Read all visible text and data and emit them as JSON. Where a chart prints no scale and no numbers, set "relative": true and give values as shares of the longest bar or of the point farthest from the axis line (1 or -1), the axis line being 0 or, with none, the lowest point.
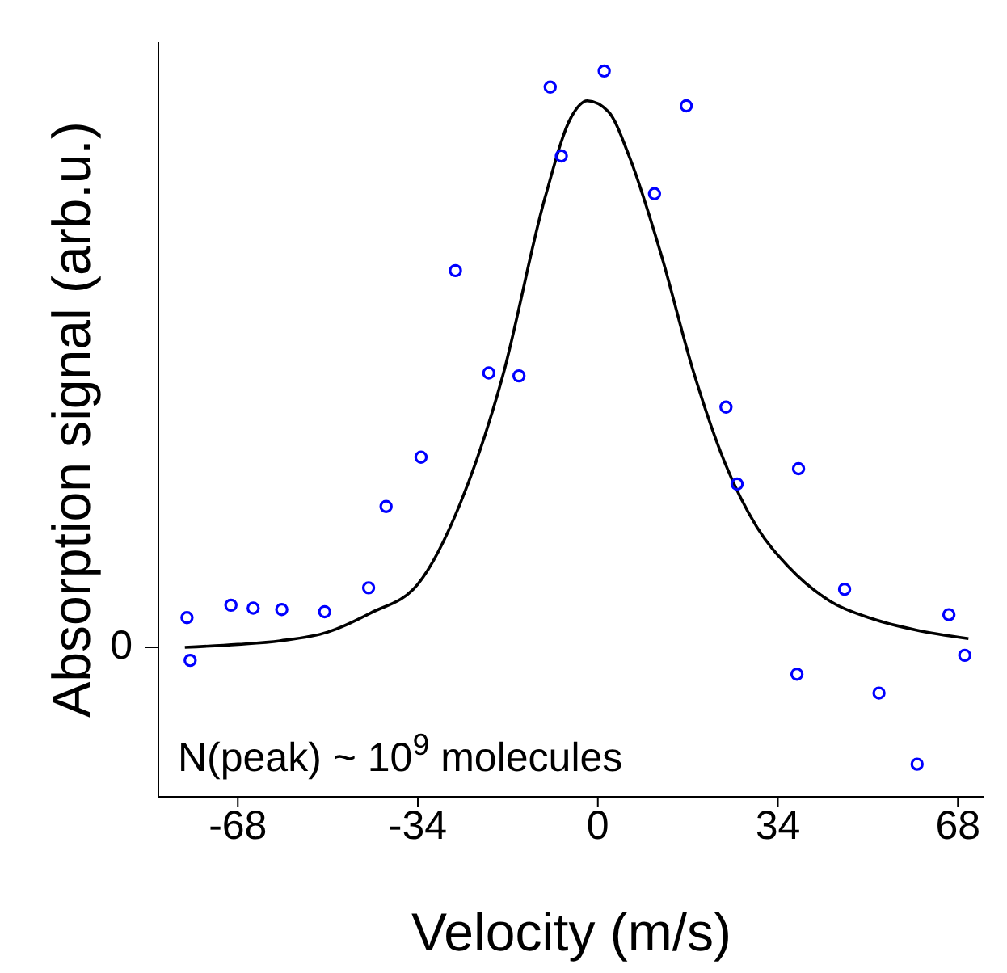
{
  "chart_data": {
    "type": "scatter",
    "xlabel": "Velocity (m/s)",
    "ylabel": "Absorption signal (arb.u.)",
    "relative": true,
    "xlim": [
      -83,
      73
    ],
    "xticks": [
      -68,
      -34,
      0,
      34,
      68
    ],
    "marker": "circle",
    "annotations": [
      "N(peak) ~ 10$^{9}$ molecules"
    ],
    "ref_lines": [
      {
        "axis": "y",
        "value": 0.206,
        "label": "0"
      }
    ],
    "series": [
      {
        "color": "#0000ff",
        "x": [
          -77.6,
          -77.0,
          -69.3,
          -65.1,
          -59.7,
          -51.6,
          -43.3,
          -40.0,
          -33.4,
          -26.9,
          -20.6,
          -14.9,
          -9.0,
          -6.9,
          1.2,
          10.7,
          16.7,
          24.2,
          26.3,
          37.9,
          37.6,
          46.6,
          53.1,
          60.3,
          66.3,
          69.3
        ],
        "values": [
          0.247,
          0.188,
          0.264,
          0.26,
          0.258,
          0.255,
          0.288,
          0.4,
          0.468,
          0.725,
          0.584,
          0.58,
          0.978,
          0.883,
          1,
          0.831,
          0.952,
          0.537,
          0.431,
          0.452,
          0.169,
          0.286,
          0.143,
          0.045,
          0.251,
          0.195
        ]
      },
      {
        "type": "line",
        "color": "#000000",
        "marker": "none",
        "line_style": "solid",
        "x": [
          -78,
          -68,
          -60,
          -51,
          -43,
          -34,
          -26,
          -18,
          -10,
          -5,
          -2,
          2,
          6,
          12,
          18,
          24,
          30,
          36,
          44,
          52,
          60,
          70
        ],
        "values": [
          0.206,
          0.21,
          0.215,
          0.227,
          0.253,
          0.293,
          0.404,
          0.579,
          0.825,
          0.937,
          0.959,
          0.944,
          0.881,
          0.746,
          0.587,
          0.46,
          0.372,
          0.317,
          0.269,
          0.245,
          0.23,
          0.218
        ]
      }
    ]
  }
}
